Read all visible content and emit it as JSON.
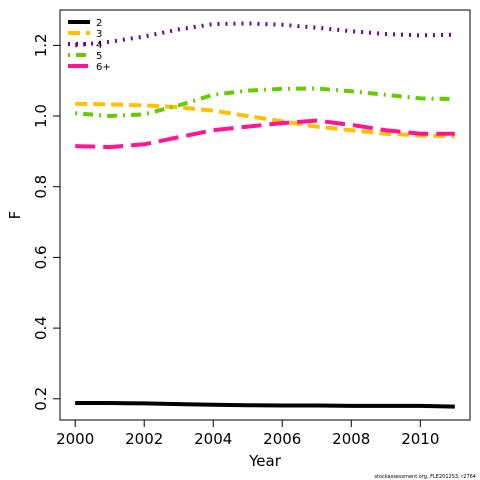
{
  "chart_data": {
    "type": "line",
    "x_label": "Year",
    "y_label": "F",
    "footer": "stockassessment.org, FLE2012S3, r2764",
    "x": [
      2000,
      2001,
      2002,
      2003,
      2004,
      2005,
      2006,
      2007,
      2008,
      2009,
      2010,
      2011
    ],
    "series": [
      {
        "name": "2",
        "color": "#000000",
        "dash": "solid",
        "values": [
          0.188,
          0.188,
          0.187,
          0.185,
          0.183,
          0.182,
          0.181,
          0.181,
          0.18,
          0.18,
          0.18,
          0.178
        ]
      },
      {
        "name": "3",
        "color": "#FFC000",
        "dash": "dashed",
        "values": [
          1.035,
          1.033,
          1.03,
          1.025,
          1.015,
          1.0,
          0.985,
          0.97,
          0.96,
          0.95,
          0.945,
          0.943
        ]
      },
      {
        "name": "4",
        "color": "#7000A0",
        "dash": "dotted",
        "values": [
          1.2,
          1.21,
          1.225,
          1.245,
          1.26,
          1.262,
          1.258,
          1.25,
          1.24,
          1.232,
          1.228,
          1.23
        ]
      },
      {
        "name": "5",
        "color": "#66CC00",
        "dash": "dotdash",
        "values": [
          1.008,
          1.0,
          1.005,
          1.03,
          1.06,
          1.072,
          1.077,
          1.078,
          1.07,
          1.06,
          1.05,
          1.048
        ]
      },
      {
        "name": "6+",
        "color": "#FF1493",
        "dash": "longdash",
        "values": [
          0.915,
          0.912,
          0.92,
          0.94,
          0.96,
          0.97,
          0.98,
          0.987,
          0.975,
          0.96,
          0.95,
          0.95
        ]
      }
    ],
    "xlim": [
      1999.56,
      2011.44
    ],
    "xticks": [
      2000,
      2002,
      2004,
      2006,
      2008,
      2010
    ],
    "ylim": [
      0.14,
      1.3
    ],
    "yticks": [
      0.2,
      0.4,
      0.6,
      0.8,
      {
        "value": 1,
        "label": "1.0"
      },
      1.2
    ],
    "legend": "top-left"
  }
}
